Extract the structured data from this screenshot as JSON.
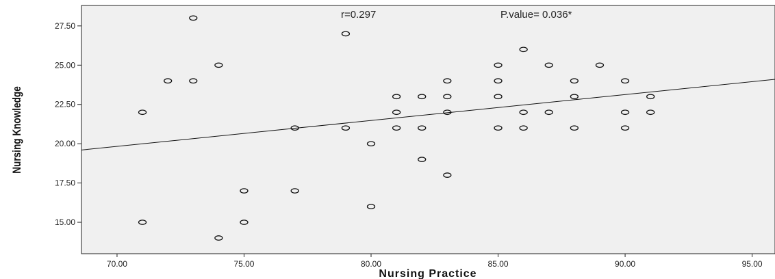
{
  "chart_data": {
    "type": "scatter",
    "title": "",
    "xlabel": "Nursing Practice",
    "ylabel": "Nursing Knowledge",
    "xlim": [
      68.6,
      95.9
    ],
    "ylim": [
      13.0,
      28.8
    ],
    "x_ticks": [
      "70.00",
      "75.00",
      "80.00",
      "85.00",
      "90.00",
      "95.00"
    ],
    "y_ticks": [
      "15.00",
      "17.50",
      "20.00",
      "22.50",
      "25.00",
      "27.50"
    ],
    "x_tick_values": [
      70,
      75,
      80,
      85,
      90,
      95
    ],
    "y_tick_values": [
      15,
      17.5,
      20,
      22.5,
      25,
      27.5
    ],
    "grid": false,
    "annotations": {
      "r": "r=0.297",
      "p": "P.value= 0.036*"
    },
    "fit_line": {
      "x": [
        68.6,
        95.9
      ],
      "y": [
        19.6,
        24.1
      ]
    },
    "points": [
      {
        "x": 71,
        "y": 22
      },
      {
        "x": 71,
        "y": 15
      },
      {
        "x": 72,
        "y": 24
      },
      {
        "x": 73,
        "y": 28
      },
      {
        "x": 73,
        "y": 24
      },
      {
        "x": 74,
        "y": 25
      },
      {
        "x": 74,
        "y": 14
      },
      {
        "x": 75,
        "y": 17
      },
      {
        "x": 75,
        "y": 15
      },
      {
        "x": 77,
        "y": 21
      },
      {
        "x": 77,
        "y": 17
      },
      {
        "x": 79,
        "y": 27
      },
      {
        "x": 79,
        "y": 21
      },
      {
        "x": 80,
        "y": 20
      },
      {
        "x": 80,
        "y": 16
      },
      {
        "x": 81,
        "y": 23
      },
      {
        "x": 81,
        "y": 22
      },
      {
        "x": 81,
        "y": 21
      },
      {
        "x": 82,
        "y": 23
      },
      {
        "x": 82,
        "y": 21
      },
      {
        "x": 82,
        "y": 19
      },
      {
        "x": 83,
        "y": 24
      },
      {
        "x": 83,
        "y": 23
      },
      {
        "x": 83,
        "y": 22
      },
      {
        "x": 83,
        "y": 18
      },
      {
        "x": 85,
        "y": 25
      },
      {
        "x": 85,
        "y": 24
      },
      {
        "x": 85,
        "y": 23
      },
      {
        "x": 85,
        "y": 21
      },
      {
        "x": 86,
        "y": 26
      },
      {
        "x": 86,
        "y": 22
      },
      {
        "x": 86,
        "y": 21
      },
      {
        "x": 87,
        "y": 25
      },
      {
        "x": 87,
        "y": 22
      },
      {
        "x": 88,
        "y": 24
      },
      {
        "x": 88,
        "y": 23
      },
      {
        "x": 88,
        "y": 21
      },
      {
        "x": 89,
        "y": 25
      },
      {
        "x": 90,
        "y": 24
      },
      {
        "x": 90,
        "y": 22
      },
      {
        "x": 90,
        "y": 21
      },
      {
        "x": 91,
        "y": 23
      },
      {
        "x": 91,
        "y": 22
      }
    ]
  }
}
